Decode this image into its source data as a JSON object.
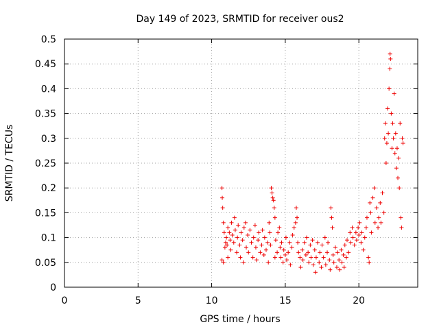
{
  "chart_data": {
    "type": "scatter",
    "title": "Day 149 of 2023, SRMTID for receiver ous2",
    "xlabel": "GPS time / hours",
    "ylabel": "SRMTID / TECUs",
    "xlim": [
      0,
      24
    ],
    "ylim": [
      0,
      0.5
    ],
    "xticks": [
      0,
      5,
      10,
      15,
      20
    ],
    "xtick_labels": [
      "0",
      "5",
      "10",
      "15",
      "20"
    ],
    "yticks": [
      0,
      0.05,
      0.1,
      0.15,
      0.2,
      0.25,
      0.3,
      0.35,
      0.4,
      0.45,
      0.5
    ],
    "ytick_labels": [
      "0",
      "0.05",
      "0.1",
      "0.15",
      "0.2",
      "0.25",
      "0.3",
      "0.35",
      "0.4",
      "0.45",
      "0.5"
    ],
    "grid": true,
    "marker": "+",
    "color": "#ee0000",
    "series": [
      {
        "name": "SRMTID",
        "points": [
          [
            10.7,
            0.2
          ],
          [
            10.72,
            0.18
          ],
          [
            10.75,
            0.16
          ],
          [
            10.7,
            0.055
          ],
          [
            10.8,
            0.05
          ],
          [
            10.8,
            0.13
          ],
          [
            10.85,
            0.11
          ],
          [
            10.9,
            0.08
          ],
          [
            10.95,
            0.09
          ],
          [
            11.0,
            0.1
          ],
          [
            11.05,
            0.085
          ],
          [
            11.1,
            0.06
          ],
          [
            11.1,
            0.12
          ],
          [
            11.2,
            0.11
          ],
          [
            11.25,
            0.095
          ],
          [
            11.3,
            0.075
          ],
          [
            11.35,
            0.13
          ],
          [
            11.4,
            0.105
          ],
          [
            11.5,
            0.09
          ],
          [
            11.55,
            0.14
          ],
          [
            11.6,
            0.115
          ],
          [
            11.7,
            0.07
          ],
          [
            11.75,
            0.1
          ],
          [
            11.8,
            0.125
          ],
          [
            11.9,
            0.085
          ],
          [
            11.95,
            0.06
          ],
          [
            12.0,
            0.11
          ],
          [
            12.1,
            0.095
          ],
          [
            12.15,
            0.05
          ],
          [
            12.2,
            0.12
          ],
          [
            12.3,
            0.13
          ],
          [
            12.35,
            0.08
          ],
          [
            12.45,
            0.105
          ],
          [
            12.5,
            0.07
          ],
          [
            12.6,
            0.115
          ],
          [
            12.7,
            0.09
          ],
          [
            12.8,
            0.06
          ],
          [
            12.85,
            0.1
          ],
          [
            12.95,
            0.125
          ],
          [
            13.0,
            0.08
          ],
          [
            13.05,
            0.055
          ],
          [
            13.15,
            0.095
          ],
          [
            13.2,
            0.11
          ],
          [
            13.3,
            0.07
          ],
          [
            13.4,
            0.085
          ],
          [
            13.45,
            0.115
          ],
          [
            13.55,
            0.065
          ],
          [
            13.6,
            0.1
          ],
          [
            13.7,
            0.075
          ],
          [
            13.8,
            0.09
          ],
          [
            13.85,
            0.05
          ],
          [
            13.9,
            0.13
          ],
          [
            13.95,
            0.11
          ],
          [
            14.0,
            0.085
          ],
          [
            14.05,
            0.2
          ],
          [
            14.1,
            0.19
          ],
          [
            14.15,
            0.18
          ],
          [
            14.2,
            0.175
          ],
          [
            14.25,
            0.16
          ],
          [
            14.3,
            0.14
          ],
          [
            14.3,
            0.06
          ],
          [
            14.35,
            0.095
          ],
          [
            14.45,
            0.07
          ],
          [
            14.5,
            0.11
          ],
          [
            14.6,
            0.12
          ],
          [
            14.65,
            0.08
          ],
          [
            14.7,
            0.06
          ],
          [
            14.75,
            0.09
          ],
          [
            14.85,
            0.05
          ],
          [
            14.9,
            0.075
          ],
          [
            15.0,
            0.065
          ],
          [
            15.05,
            0.1
          ],
          [
            15.1,
            0.055
          ],
          [
            15.2,
            0.07
          ],
          [
            15.3,
            0.09
          ],
          [
            15.35,
            0.045
          ],
          [
            15.45,
            0.08
          ],
          [
            15.5,
            0.105
          ],
          [
            15.6,
            0.12
          ],
          [
            15.7,
            0.13
          ],
          [
            15.75,
            0.16
          ],
          [
            15.8,
            0.14
          ],
          [
            15.85,
            0.09
          ],
          [
            15.9,
            0.07
          ],
          [
            16.0,
            0.06
          ],
          [
            16.05,
            0.04
          ],
          [
            16.15,
            0.075
          ],
          [
            16.2,
            0.055
          ],
          [
            16.3,
            0.09
          ],
          [
            16.4,
            0.065
          ],
          [
            16.45,
            0.1
          ],
          [
            16.55,
            0.07
          ],
          [
            16.6,
            0.05
          ],
          [
            16.7,
            0.085
          ],
          [
            16.75,
            0.06
          ],
          [
            16.85,
            0.095
          ],
          [
            16.9,
            0.045
          ],
          [
            17.0,
            0.075
          ],
          [
            17.05,
            0.03
          ],
          [
            17.1,
            0.06
          ],
          [
            17.2,
            0.09
          ],
          [
            17.3,
            0.05
          ],
          [
            17.35,
            0.07
          ],
          [
            17.45,
            0.04
          ],
          [
            17.5,
            0.085
          ],
          [
            17.6,
            0.06
          ],
          [
            17.7,
            0.1
          ],
          [
            17.75,
            0.045
          ],
          [
            17.85,
            0.07
          ],
          [
            17.9,
            0.09
          ],
          [
            18.0,
            0.055
          ],
          [
            18.05,
            0.035
          ],
          [
            18.1,
            0.16
          ],
          [
            18.15,
            0.14
          ],
          [
            18.2,
            0.12
          ],
          [
            18.25,
            0.065
          ],
          [
            18.3,
            0.05
          ],
          [
            18.4,
            0.08
          ],
          [
            18.5,
            0.04
          ],
          [
            18.55,
            0.07
          ],
          [
            18.65,
            0.055
          ],
          [
            18.7,
            0.035
          ],
          [
            18.8,
            0.075
          ],
          [
            18.85,
            0.05
          ],
          [
            18.95,
            0.065
          ],
          [
            19.0,
            0.04
          ],
          [
            19.05,
            0.085
          ],
          [
            19.15,
            0.06
          ],
          [
            19.2,
            0.095
          ],
          [
            19.3,
            0.07
          ],
          [
            19.4,
            0.11
          ],
          [
            19.45,
            0.09
          ],
          [
            19.55,
            0.12
          ],
          [
            19.6,
            0.1
          ],
          [
            19.7,
            0.085
          ],
          [
            19.8,
            0.11
          ],
          [
            19.85,
            0.095
          ],
          [
            19.95,
            0.12
          ],
          [
            20.0,
            0.105
          ],
          [
            20.05,
            0.13
          ],
          [
            20.15,
            0.09
          ],
          [
            20.2,
            0.11
          ],
          [
            20.3,
            0.075
          ],
          [
            20.4,
            0.1
          ],
          [
            20.5,
            0.12
          ],
          [
            20.55,
            0.14
          ],
          [
            20.65,
            0.06
          ],
          [
            20.7,
            0.05
          ],
          [
            20.75,
            0.17
          ],
          [
            20.8,
            0.15
          ],
          [
            20.85,
            0.11
          ],
          [
            20.95,
            0.18
          ],
          [
            21.05,
            0.2
          ],
          [
            21.1,
            0.13
          ],
          [
            21.2,
            0.16
          ],
          [
            21.3,
            0.12
          ],
          [
            21.35,
            0.14
          ],
          [
            21.45,
            0.17
          ],
          [
            21.5,
            0.13
          ],
          [
            21.6,
            0.19
          ],
          [
            21.7,
            0.15
          ],
          [
            21.75,
            0.3
          ],
          [
            21.8,
            0.33
          ],
          [
            21.85,
            0.25
          ],
          [
            21.9,
            0.29
          ],
          [
            21.95,
            0.36
          ],
          [
            22.0,
            0.31
          ],
          [
            22.05,
            0.4
          ],
          [
            22.1,
            0.44
          ],
          [
            22.12,
            0.47
          ],
          [
            22.15,
            0.46
          ],
          [
            22.2,
            0.35
          ],
          [
            22.25,
            0.28
          ],
          [
            22.3,
            0.33
          ],
          [
            22.35,
            0.3
          ],
          [
            22.4,
            0.39
          ],
          [
            22.45,
            0.27
          ],
          [
            22.5,
            0.31
          ],
          [
            22.55,
            0.24
          ],
          [
            22.6,
            0.28
          ],
          [
            22.65,
            0.22
          ],
          [
            22.7,
            0.26
          ],
          [
            22.75,
            0.2
          ],
          [
            22.8,
            0.33
          ],
          [
            22.85,
            0.14
          ],
          [
            22.9,
            0.12
          ],
          [
            22.95,
            0.3
          ],
          [
            23.0,
            0.29
          ]
        ]
      }
    ]
  }
}
